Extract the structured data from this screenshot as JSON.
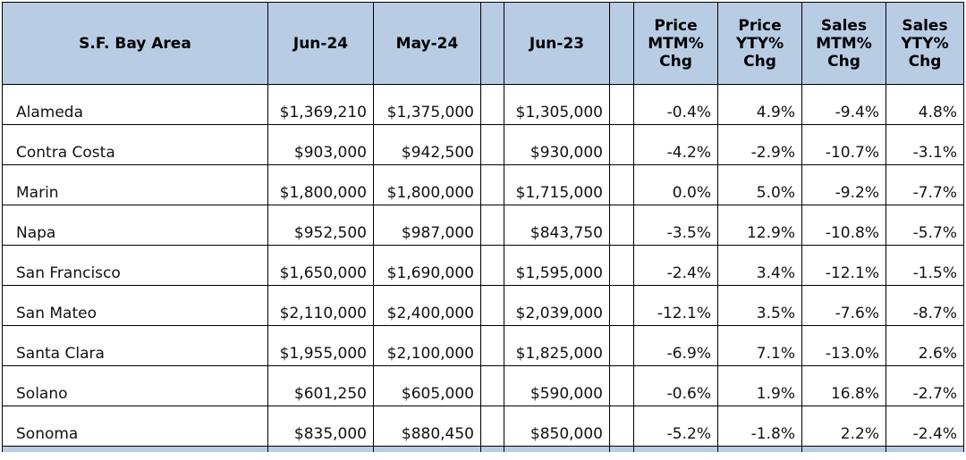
{
  "headers": {
    "area": "S.F. Bay Area",
    "jun24": "Jun-24",
    "may24": "May-24",
    "jun23": "Jun-23",
    "price_mtm": "Price MTM% Chg",
    "price_yty": "Price YTY% Chg",
    "sales_mtm": "Sales MTM% Chg",
    "sales_yty": "Sales YTY% Chg"
  },
  "rows": [
    {
      "county": "Alameda",
      "jun24": "$1,369,210",
      "may24": "$1,375,000",
      "jun23": "$1,305,000",
      "price_mtm": "-0.4%",
      "price_yty": "4.9%",
      "sales_mtm": "-9.4%",
      "sales_yty": "4.8%"
    },
    {
      "county": "Contra Costa",
      "jun24": "$903,000",
      "may24": "$942,500",
      "jun23": "$930,000",
      "price_mtm": "-4.2%",
      "price_yty": "-2.9%",
      "sales_mtm": "-10.7%",
      "sales_yty": "-3.1%"
    },
    {
      "county": "Marin",
      "jun24": "$1,800,000",
      "may24": "$1,800,000",
      "jun23": "$1,715,000",
      "price_mtm": "0.0%",
      "price_yty": "5.0%",
      "sales_mtm": "-9.2%",
      "sales_yty": "-7.7%"
    },
    {
      "county": "Napa",
      "jun24": "$952,500",
      "may24": "$987,000",
      "jun23": "$843,750",
      "price_mtm": "-3.5%",
      "price_yty": "12.9%",
      "sales_mtm": "-10.8%",
      "sales_yty": "-5.7%"
    },
    {
      "county": "San Francisco",
      "jun24": "$1,650,000",
      "may24": "$1,690,000",
      "jun23": "$1,595,000",
      "price_mtm": "-2.4%",
      "price_yty": "3.4%",
      "sales_mtm": "-12.1%",
      "sales_yty": "-1.5%"
    },
    {
      "county": "San Mateo",
      "jun24": "$2,110,000",
      "may24": "$2,400,000",
      "jun23": "$2,039,000",
      "price_mtm": "-12.1%",
      "price_yty": "3.5%",
      "sales_mtm": "-7.6%",
      "sales_yty": "-8.7%"
    },
    {
      "county": "Santa Clara",
      "jun24": "$1,955,000",
      "may24": "$2,100,000",
      "jun23": "$1,825,000",
      "price_mtm": "-6.9%",
      "price_yty": "7.1%",
      "sales_mtm": "-13.0%",
      "sales_yty": "2.6%"
    },
    {
      "county": "Solano",
      "jun24": "$601,250",
      "may24": "$605,000",
      "jun23": "$590,000",
      "price_mtm": "-0.6%",
      "price_yty": "1.9%",
      "sales_mtm": "16.8%",
      "sales_yty": "-2.7%"
    },
    {
      "county": "Sonoma",
      "jun24": "$835,000",
      "may24": "$880,450",
      "jun23": "$850,000",
      "price_mtm": "-5.2%",
      "price_yty": "-1.8%",
      "sales_mtm": "2.2%",
      "sales_yty": "-2.4%"
    }
  ],
  "colors": {
    "header_background": "#b8cce4",
    "border": "#000000"
  }
}
